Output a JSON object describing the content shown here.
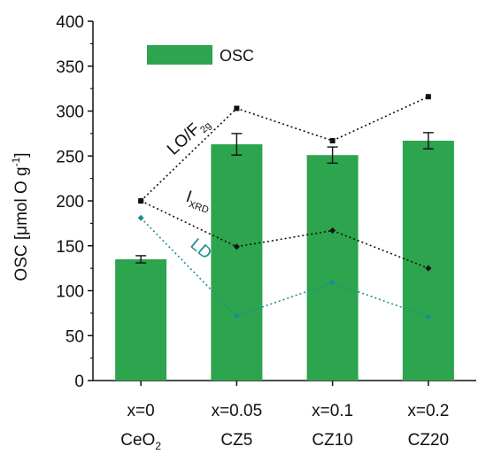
{
  "chart_data": {
    "type": "bar",
    "categories": [
      {
        "top": "x=0",
        "base": "CeO",
        "sub": "2"
      },
      {
        "top": "x=0.05",
        "base": "CZ5",
        "sub": ""
      },
      {
        "top": "x=0.1",
        "base": "CZ10",
        "sub": ""
      },
      {
        "top": "x=0.2",
        "base": "CZ20",
        "sub": ""
      }
    ],
    "ylabel": {
      "main": "OSC [μmol O g",
      "sup": "-1",
      "end": "]"
    },
    "ylim": [
      0,
      400
    ],
    "yticks": [
      0,
      50,
      100,
      150,
      200,
      250,
      300,
      350,
      400
    ],
    "grid": false,
    "legend": {
      "position": "top-left",
      "label": "OSC"
    },
    "series": [
      {
        "name": "OSC",
        "kind": "bar",
        "values": [
          135,
          263,
          251,
          267
        ],
        "errors": [
          4,
          12,
          9,
          9
        ],
        "color": "#2da44e"
      },
      {
        "name": "LO/F2g",
        "kind": "dotted-line",
        "values": [
          200,
          303,
          267,
          316
        ],
        "color": "#111111"
      },
      {
        "name": "IXRD",
        "kind": "dotted-line",
        "values": [
          200,
          149,
          167,
          125
        ],
        "color": "#111111"
      },
      {
        "name": "LD",
        "kind": "dotted-line",
        "values": [
          181,
          72,
          109,
          71
        ],
        "color": "#1a8f8f"
      }
    ],
    "annotations": [
      {
        "base": "LO/F",
        "sub": "2g",
        "series": "LO/F2g"
      },
      {
        "base": "I",
        "sub": "XRD",
        "series": "IXRD"
      },
      {
        "base": "LD",
        "sub": "",
        "series": "LD"
      }
    ]
  }
}
